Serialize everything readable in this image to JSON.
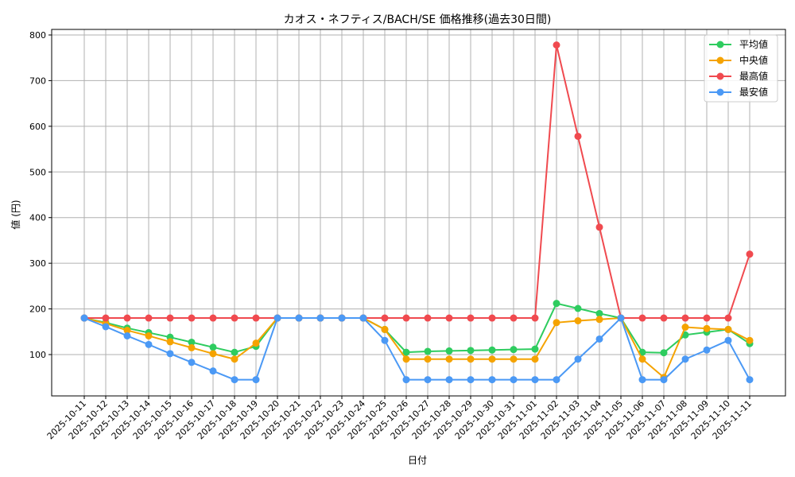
{
  "chart_data": {
    "type": "line",
    "title": "カオス・ネフティス/BACH/SE 価格推移(過去30日間)",
    "xlabel": "日付",
    "ylabel": "値 (円)",
    "ylim": [
      12,
      815
    ],
    "yticks": [
      100,
      200,
      300,
      400,
      500,
      600,
      700,
      800
    ],
    "grid": true,
    "legend_position": "upper right",
    "categories": [
      "2025-10-11",
      "2025-10-12",
      "2025-10-13",
      "2025-10-14",
      "2025-10-15",
      "2025-10-16",
      "2025-10-17",
      "2025-10-18",
      "2025-10-19",
      "2025-10-20",
      "2025-10-21",
      "2025-10-22",
      "2025-10-23",
      "2025-10-24",
      "2025-10-25",
      "2025-10-26",
      "2025-10-27",
      "2025-10-28",
      "2025-10-29",
      "2025-10-30",
      "2025-10-31",
      "2025-11-01",
      "2025-11-02",
      "2025-11-03",
      "2025-11-04",
      "2025-11-05",
      "2025-11-06",
      "2025-11-07",
      "2025-11-08",
      "2025-11-09",
      "2025-11-10",
      "2025-11-11"
    ],
    "series": [
      {
        "name": "平均値",
        "color": "#2ecc5f",
        "values": [
          180,
          170,
          158,
          148,
          138,
          127,
          116,
          105,
          118,
          180,
          180,
          180,
          180,
          180,
          155,
          105,
          107,
          108,
          109,
          110,
          111,
          112,
          212,
          201,
          190,
          180,
          105,
          104,
          143,
          149,
          155,
          124
        ]
      },
      {
        "name": "中央値",
        "color": "#f5a300",
        "values": [
          180,
          168,
          153,
          141,
          128,
          115,
          102,
          90,
          125,
          180,
          180,
          180,
          180,
          180,
          155,
          90,
          90,
          90,
          90,
          90,
          90,
          90,
          170,
          174,
          177,
          180,
          90,
          50,
          160,
          157,
          155,
          131
        ]
      },
      {
        "name": "最高値",
        "color": "#f04a4f",
        "values": [
          180,
          180,
          180,
          180,
          180,
          180,
          180,
          180,
          180,
          180,
          180,
          180,
          180,
          180,
          180,
          180,
          180,
          180,
          180,
          180,
          180,
          180,
          778,
          578,
          379,
          180,
          180,
          180,
          180,
          180,
          180,
          320
        ]
      },
      {
        "name": "最安値",
        "color": "#4b99f5",
        "values": [
          180,
          161,
          141,
          122,
          102,
          83,
          64,
          45,
          45,
          180,
          180,
          180,
          180,
          180,
          131,
          45,
          45,
          45,
          45,
          45,
          45,
          45,
          45,
          90,
          134,
          180,
          45,
          45,
          90,
          110,
          131,
          45
        ]
      }
    ]
  }
}
